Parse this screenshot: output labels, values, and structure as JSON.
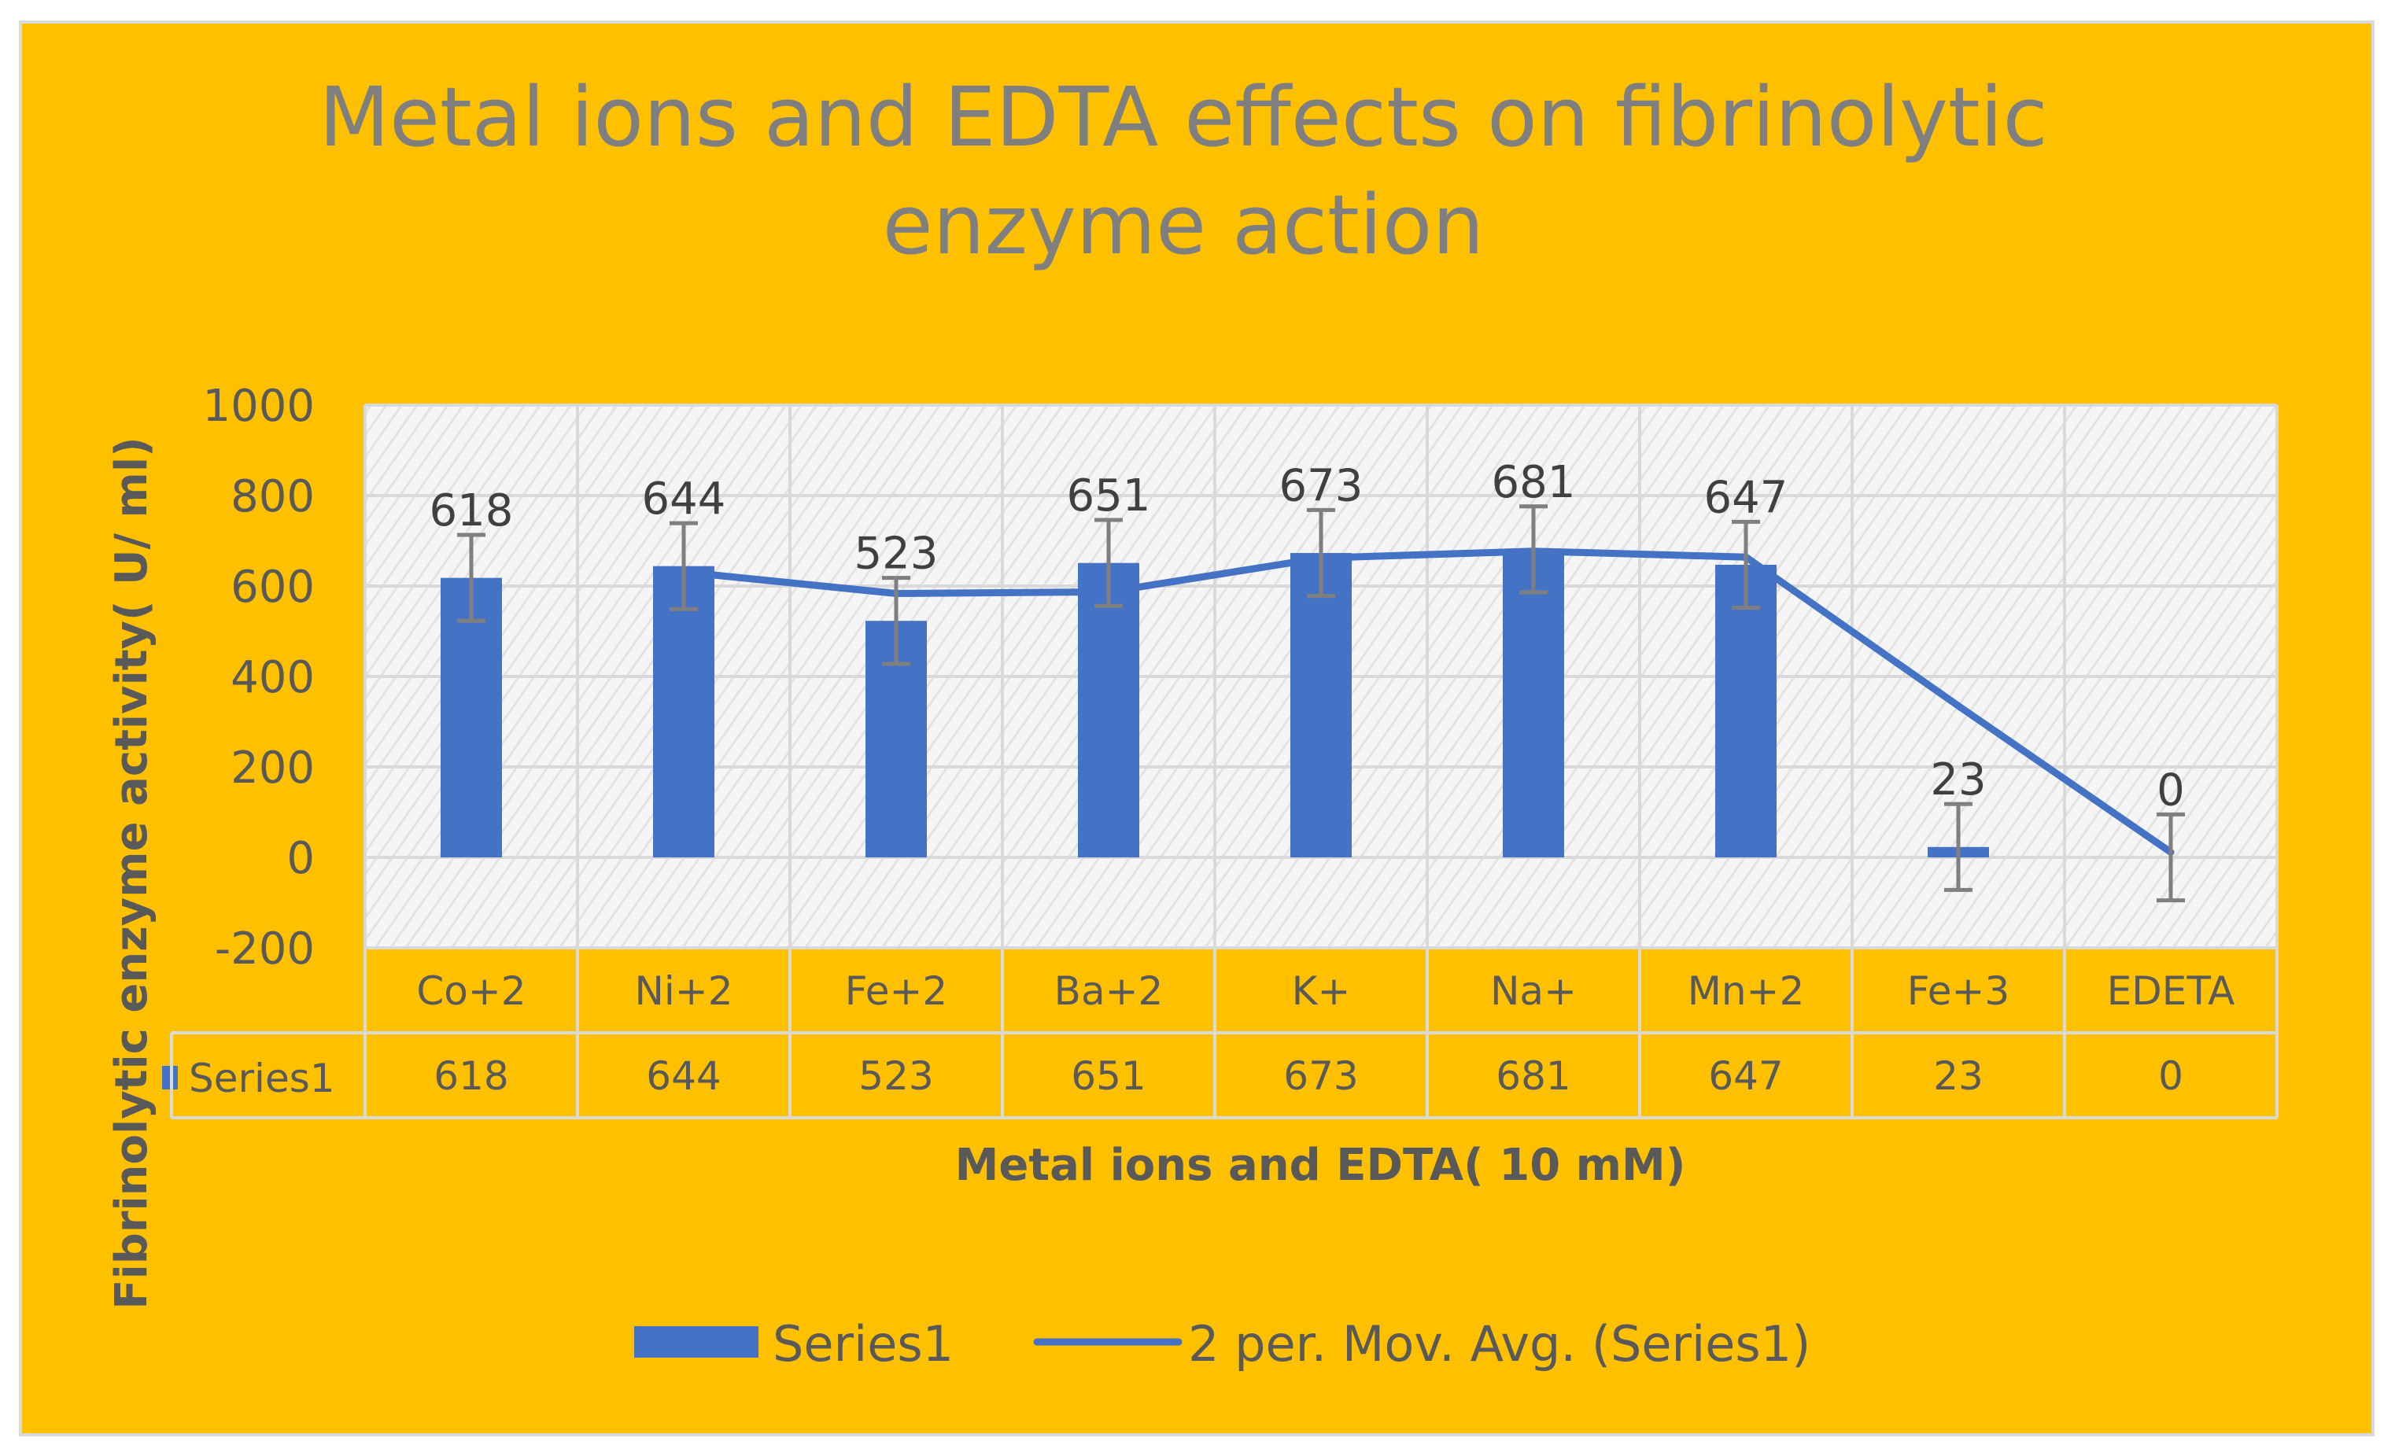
{
  "chart_data": {
    "type": "bar",
    "title": "Metal ions and EDTA effects on fibrinolytic enzyme action",
    "title_lines": [
      "Metal ions and EDTA effects on fibrinolytic",
      "enzyme action"
    ],
    "xlabel": "Metal ions and EDTA( 10 mM)",
    "ylabel": "Fibrinolytic enzyme activity( U/ ml)",
    "ylim": [
      -200,
      1000
    ],
    "yticks": [
      -200,
      0,
      200,
      400,
      600,
      800,
      1000
    ],
    "grid": true,
    "categories": [
      "Co+2",
      "Ni+2",
      "Fe+2",
      "Ba+2",
      "K+",
      "Na+",
      "Mn+2",
      "Fe+3",
      "EDETA"
    ],
    "series": [
      {
        "name": "Series1",
        "values": [
          618,
          644,
          523,
          651,
          673,
          681,
          647,
          23,
          0
        ],
        "error": 95,
        "color": "#4472C4"
      }
    ],
    "trendline": {
      "name": "2 per. Mov. Avg. (Series1)",
      "type": "moving-average",
      "period": 2,
      "color": "#4472C4"
    },
    "data_table": {
      "series_label": "Series1",
      "values": [
        "618",
        "644",
        "523",
        "651",
        "673",
        "681",
        "647",
        "23",
        "0"
      ]
    },
    "legend": {
      "position": "bottom",
      "entries": [
        "Series1",
        "2 per. Mov. Avg. (Series1)"
      ]
    },
    "colors": {
      "background": "#FFC000",
      "plot_background": "#f2f2f2",
      "gridline": "#d9d9d9",
      "error_bar": "#7f7f7f"
    }
  }
}
